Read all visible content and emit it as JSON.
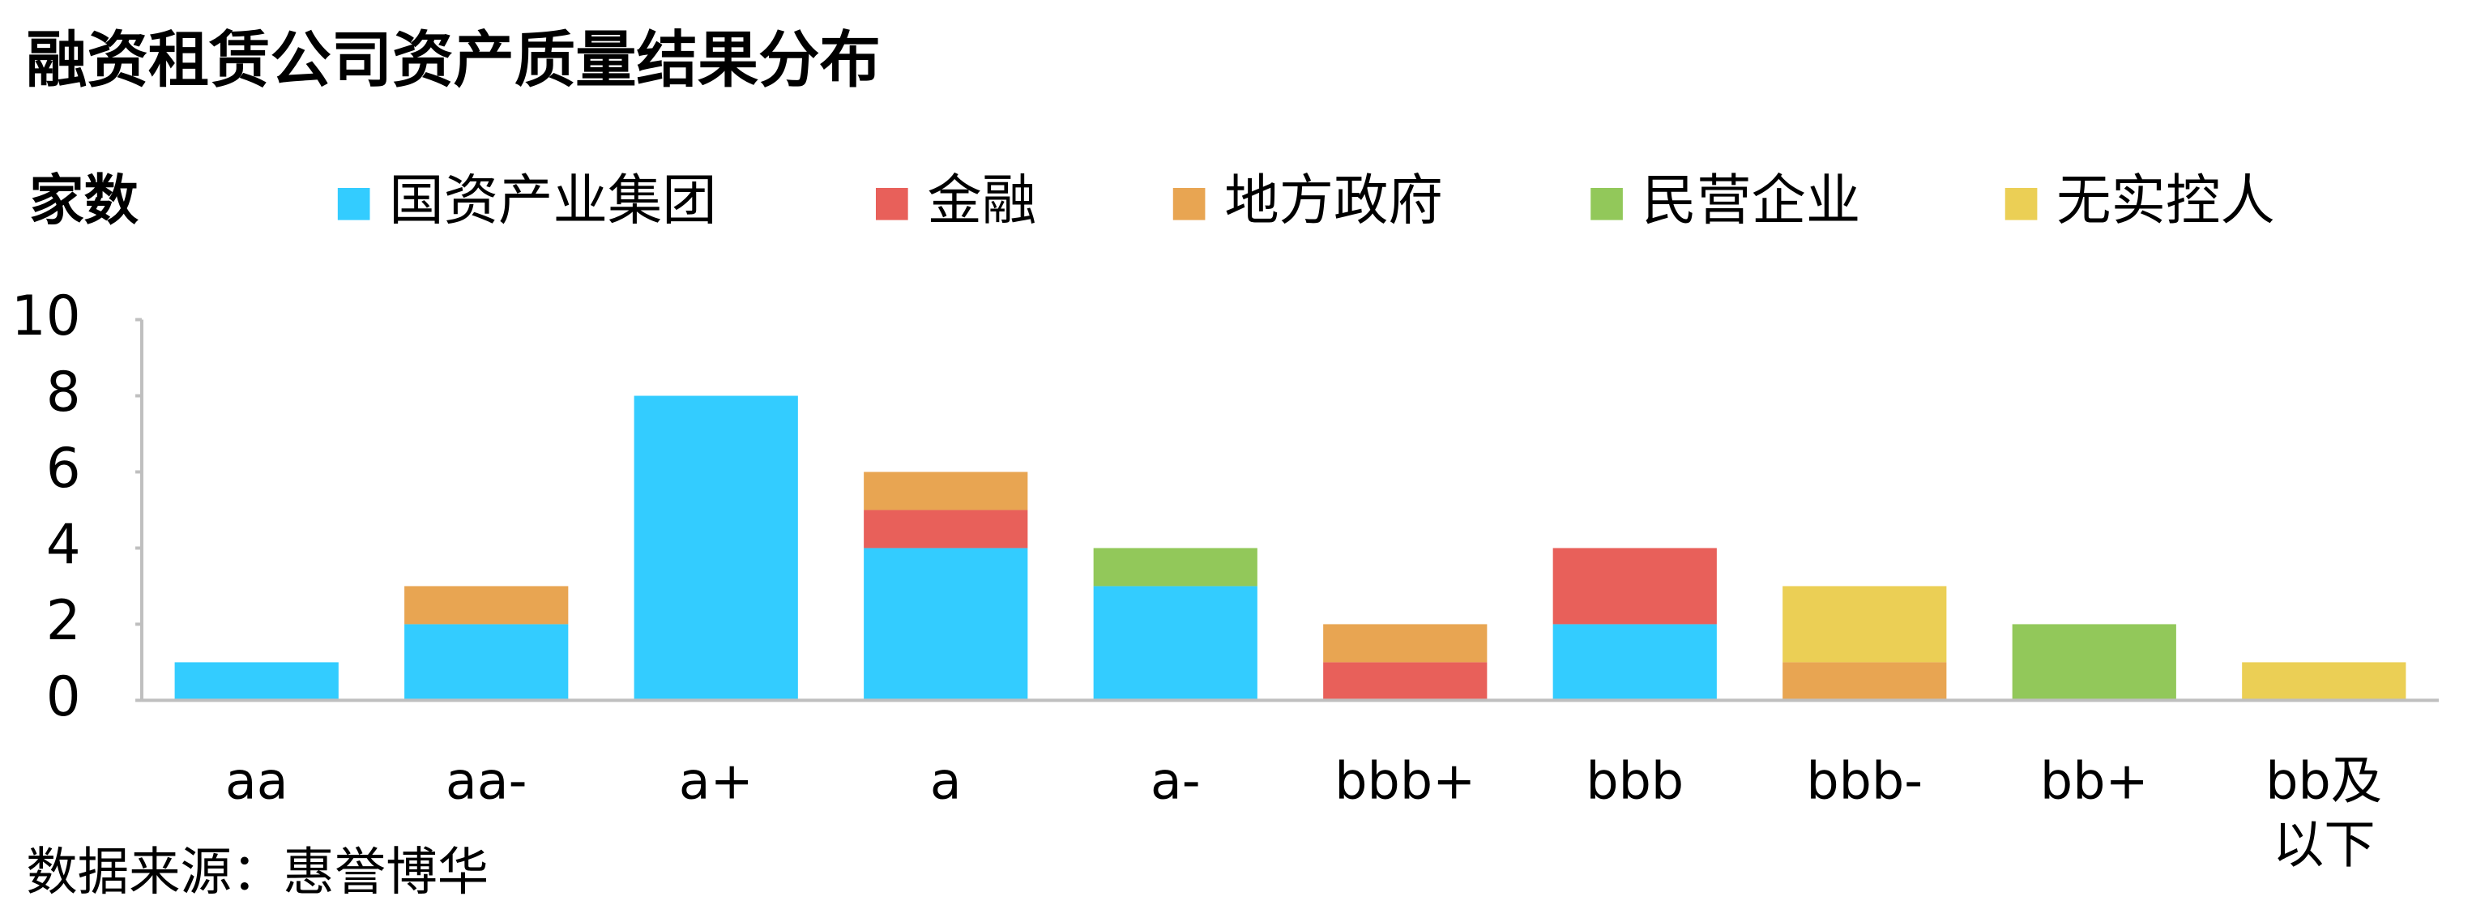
{
  "chart_data": {
    "type": "bar",
    "stacked": true,
    "title": "融资租赁公司资产质量结果分布",
    "y_label": "家数",
    "source": "数据来源：惠誉博华",
    "categories": [
      "aa",
      "aa-",
      "a+",
      "a",
      "a-",
      "bbb+",
      "bbb",
      "bbb-",
      "bb+",
      "bb及以下"
    ],
    "series": [
      {
        "name": "国资产业集团",
        "color": "#33ccff",
        "values": [
          1,
          2,
          8,
          4,
          3,
          0,
          2,
          0,
          0,
          0
        ]
      },
      {
        "name": "金融",
        "color": "#e8605a",
        "values": [
          0,
          0,
          0,
          1,
          0,
          1,
          2,
          0,
          0,
          0
        ]
      },
      {
        "name": "地方政府",
        "color": "#e8a552",
        "values": [
          0,
          1,
          0,
          1,
          0,
          1,
          0,
          1,
          0,
          0
        ]
      },
      {
        "name": "民营企业",
        "color": "#92c85a",
        "values": [
          0,
          0,
          0,
          0,
          1,
          0,
          0,
          0,
          2,
          0
        ]
      },
      {
        "name": "无实控人",
        "color": "#ebcf55",
        "values": [
          0,
          0,
          0,
          0,
          0,
          0,
          0,
          2,
          0,
          1
        ]
      }
    ],
    "ylim": [
      0,
      10
    ],
    "yticks": [
      0,
      2,
      4,
      6,
      8,
      10
    ],
    "grid": false
  }
}
